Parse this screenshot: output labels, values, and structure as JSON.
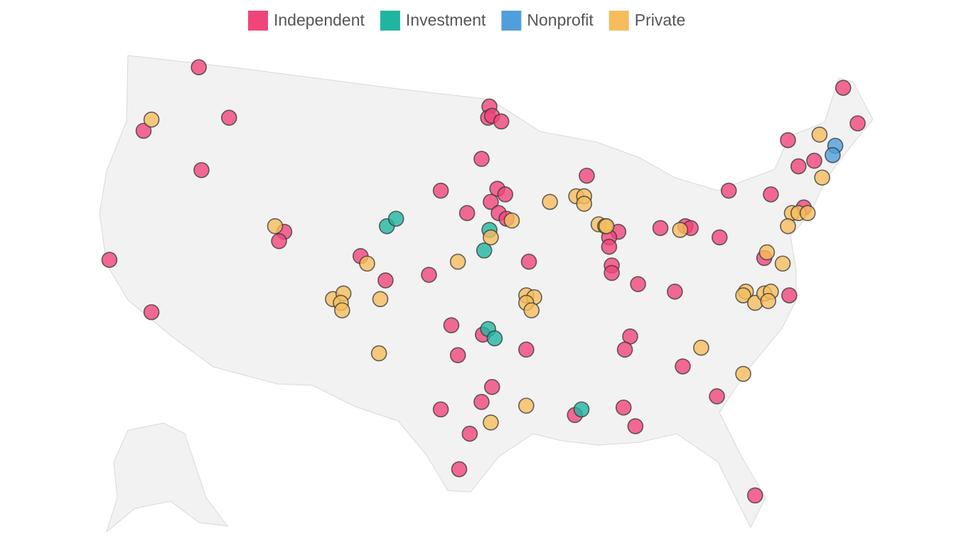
{
  "groups": [
    {
      "name": "Independent",
      "color": "#f0457a",
      "points": [
        [
          -117.8,
          48.7
        ],
        [
          -115.5,
          46.0
        ],
        [
          -122.0,
          45.3
        ],
        [
          -117.6,
          43.2
        ],
        [
          -124.6,
          38.4
        ],
        [
          -121.4,
          35.6
        ],
        [
          -111.3,
          39.9
        ],
        [
          -111.7,
          39.4
        ],
        [
          -105.5,
          38.6
        ],
        [
          -103.6,
          37.3
        ],
        [
          -100.3,
          37.6
        ],
        [
          -99.4,
          42.1
        ],
        [
          -97.4,
          40.9
        ],
        [
          -96.3,
          43.8
        ],
        [
          -95.7,
          46.6
        ],
        [
          -95.8,
          46.0
        ],
        [
          -95.5,
          46.1
        ],
        [
          -94.8,
          45.8
        ],
        [
          -95.1,
          42.2
        ],
        [
          -95.6,
          41.5
        ],
        [
          -94.5,
          41.9
        ],
        [
          -95.0,
          40.9
        ],
        [
          -94.4,
          40.6
        ],
        [
          -88.3,
          42.9
        ],
        [
          -92.7,
          38.3
        ],
        [
          -85.9,
          39.9
        ],
        [
          -86.6,
          39.6
        ],
        [
          -86.6,
          39.1
        ],
        [
          -86.4,
          38.1
        ],
        [
          -86.4,
          37.7
        ],
        [
          -84.4,
          37.1
        ],
        [
          -82.7,
          40.1
        ],
        [
          -80.8,
          40.2
        ],
        [
          -80.4,
          40.1
        ],
        [
          -78.2,
          39.6
        ],
        [
          -81.6,
          36.7
        ],
        [
          -74.8,
          38.5
        ],
        [
          -72.9,
          36.5
        ],
        [
          -77.5,
          42.1
        ],
        [
          -74.3,
          41.9
        ],
        [
          -73.0,
          44.8
        ],
        [
          -72.2,
          43.4
        ],
        [
          -71.0,
          43.7
        ],
        [
          -71.8,
          41.2
        ],
        [
          -68.8,
          47.6
        ],
        [
          -67.7,
          45.7
        ],
        [
          -98.6,
          34.9
        ],
        [
          -98.1,
          33.3
        ],
        [
          -96.2,
          34.4
        ],
        [
          -92.9,
          33.6
        ],
        [
          -85.0,
          34.3
        ],
        [
          -85.4,
          33.6
        ],
        [
          -81.0,
          32.7
        ],
        [
          -95.5,
          31.6
        ],
        [
          -96.3,
          30.8
        ],
        [
          -99.4,
          30.4
        ],
        [
          -97.2,
          29.1
        ],
        [
          -98.0,
          27.2
        ],
        [
          -89.2,
          30.1
        ],
        [
          -85.5,
          30.5
        ],
        [
          -84.6,
          29.5
        ],
        [
          -78.4,
          31.1
        ],
        [
          -75.5,
          25.8
        ]
      ]
    },
    {
      "name": "Investment",
      "color": "#20b5a0",
      "points": [
        [
          -103.5,
          40.2
        ],
        [
          -102.8,
          40.6
        ],
        [
          -95.7,
          40.0
        ],
        [
          -96.1,
          38.9
        ],
        [
          -95.8,
          34.7
        ],
        [
          -95.3,
          34.2
        ],
        [
          -88.7,
          30.4
        ]
      ]
    },
    {
      "name": "Nonprofit",
      "color": "#4f9fdc",
      "points": [
        [
          -69.4,
          44.5
        ],
        [
          -69.6,
          44.0
        ]
      ]
    },
    {
      "name": "Private",
      "color": "#f5bd5c",
      "points": [
        [
          -121.4,
          45.9
        ],
        [
          -112.0,
          40.2
        ],
        [
          -105.0,
          38.2
        ],
        [
          -98.1,
          38.3
        ],
        [
          -95.6,
          39.6
        ],
        [
          -94.0,
          40.5
        ],
        [
          -91.1,
          41.5
        ],
        [
          -89.1,
          41.8
        ],
        [
          -88.5,
          41.8
        ],
        [
          -88.5,
          41.4
        ],
        [
          -87.4,
          40.3
        ],
        [
          -86.9,
          40.2
        ],
        [
          -86.8,
          40.2
        ],
        [
          -81.2,
          40.0
        ],
        [
          -72.7,
          40.9
        ],
        [
          -72.2,
          40.9
        ],
        [
          -71.5,
          40.9
        ],
        [
          -73.0,
          40.2
        ],
        [
          -70.4,
          42.8
        ],
        [
          -70.6,
          45.1
        ],
        [
          -74.6,
          38.8
        ],
        [
          -73.4,
          38.2
        ],
        [
          -76.2,
          36.7
        ],
        [
          -76.4,
          36.5
        ],
        [
          -75.5,
          36.1
        ],
        [
          -74.8,
          36.6
        ],
        [
          -74.3,
          36.7
        ],
        [
          -74.5,
          36.2
        ],
        [
          -107.6,
          36.3
        ],
        [
          -106.8,
          36.6
        ],
        [
          -107.0,
          36.1
        ],
        [
          -106.9,
          35.7
        ],
        [
          -104.0,
          36.3
        ],
        [
          -104.1,
          33.4
        ],
        [
          -92.9,
          36.5
        ],
        [
          -92.3,
          36.4
        ],
        [
          -92.9,
          36.1
        ],
        [
          -92.5,
          35.7
        ],
        [
          -79.6,
          33.7
        ],
        [
          -76.4,
          32.3
        ],
        [
          -92.9,
          30.6
        ],
        [
          -95.6,
          29.7
        ]
      ]
    }
  ]
}
